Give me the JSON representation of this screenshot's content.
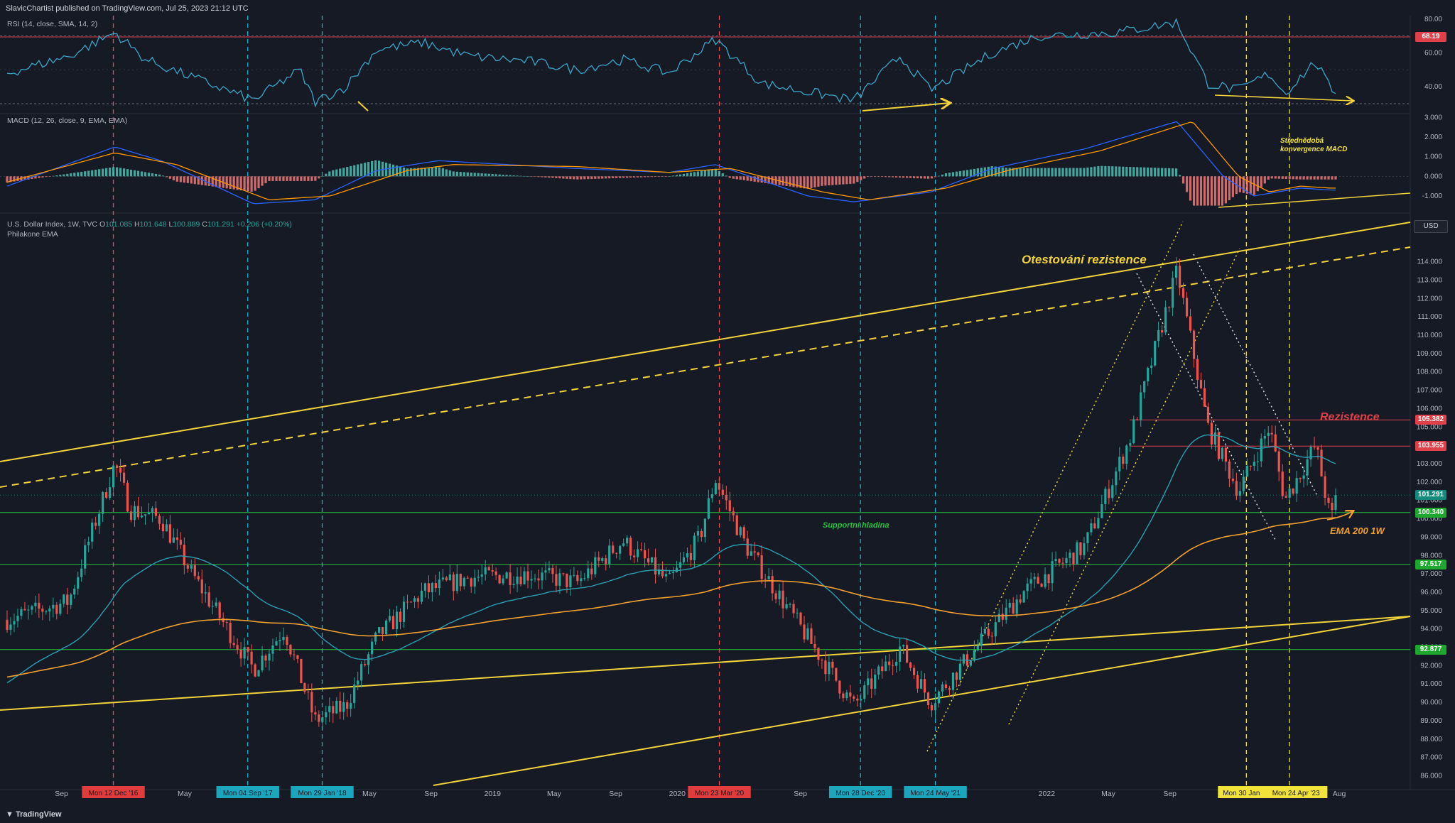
{
  "header": {
    "published": "SlavicChartist published on TradingView.com, Jul 25, 2023 21:12 UTC"
  },
  "footer": {
    "brand": "TradingView"
  },
  "panes": {
    "rsi_label": "RSI (14, close, SMA, 14, 2)",
    "macd_label": "MACD (12, 26, close, 9, EMA, EMA)",
    "main_label": "U.S. Dollar Index, 1W, TVC",
    "ohlc": {
      "o_label": "O",
      "o": "101.085",
      "h_label": "H",
      "h": "101.648",
      "l_label": "L",
      "l": "100.889",
      "c_label": "C",
      "c": "101.291",
      "chg": "+0.206 (+0.20%)"
    },
    "ema_label": "Philakone EMA",
    "currency": "USD"
  },
  "annotations": {
    "resistance_test": "Otestování rezistence",
    "resistance": "Rezistence",
    "support": "Supportní hladina",
    "ema200": "EMA 200 1W",
    "macd_conv_1": "Střednědobá",
    "macd_conv_2": "konvergence MACD"
  },
  "colors": {
    "background": "#161a25",
    "candle_up": "#26a69a",
    "candle_down": "#ef5350",
    "rsi_line": "#3aa6c8",
    "macd_line": "#2962ff",
    "signal_line": "#ff9800",
    "ema_short": "#2a9fb0",
    "ema_200": "#f0a030",
    "channel": "#f2d33b",
    "support": "#27c23a",
    "resistance": "#e0404a",
    "red_marker": "#e84c4c",
    "cyan_marker": "#22b0c8",
    "yellow_marker": "#f2e33b"
  },
  "chart_data": {
    "type": "candlestick",
    "title": "U.S. Dollar Index, 1W, TVC",
    "ylim": [
      85.4,
      115.3
    ],
    "y_ticks": [
      "86.000",
      "87.000",
      "88.000",
      "89.000",
      "90.000",
      "91.000",
      "92.000",
      "93.000",
      "94.000",
      "95.000",
      "96.000",
      "97.000",
      "98.000",
      "99.000",
      "100.000",
      "101.000",
      "102.000",
      "103.000",
      "104.000",
      "105.000",
      "106.000",
      "107.000",
      "108.000",
      "109.000",
      "110.000",
      "111.000",
      "112.000",
      "113.000",
      "114.000"
    ],
    "x_ticks": [
      "Sep",
      "May",
      "May",
      "Sep",
      "2019",
      "May",
      "Sep",
      "2020",
      "Sep",
      "2022",
      "May",
      "Sep",
      "Aug"
    ],
    "price_levels": [
      {
        "value": 105.382,
        "label": "105.382",
        "kind": "resistance"
      },
      {
        "value": 103.955,
        "label": "103.955",
        "kind": "resistance"
      },
      {
        "value": 101.291,
        "label": "101.291",
        "kind": "last"
      },
      {
        "value": 100.34,
        "label": "100.340",
        "kind": "support"
      },
      {
        "value": 97.517,
        "label": "97.517",
        "kind": "support"
      },
      {
        "value": 92.877,
        "label": "92.877",
        "kind": "support"
      }
    ],
    "pivot_markers": [
      {
        "date": "Mon 12 Dec '16",
        "kind": "top"
      },
      {
        "date": "Mon 04 Sep '17",
        "kind": "bottom"
      },
      {
        "date": "Mon 29 Jan '18",
        "kind": "bottom"
      },
      {
        "date": "Mon 23 Mar '20",
        "kind": "top"
      },
      {
        "date": "Mon 28 Dec '20",
        "kind": "bottom"
      },
      {
        "date": "Mon 24 May '21",
        "kind": "bottom"
      },
      {
        "date": "Mon 30 Jan",
        "kind": "divergence"
      },
      {
        "date": "Mon 24 Apr '23",
        "kind": "divergence"
      }
    ],
    "close_path": [
      [
        "2016-05",
        94.5
      ],
      [
        "2016-09",
        95.5
      ],
      [
        "2016-12",
        103.0
      ],
      [
        "2017-01",
        100.5
      ],
      [
        "2017-03",
        100.0
      ],
      [
        "2017-05",
        97.0
      ],
      [
        "2017-09",
        91.8
      ],
      [
        "2017-11",
        94.0
      ],
      [
        "2018-01",
        89.0
      ],
      [
        "2018-03",
        89.8
      ],
      [
        "2018-05",
        93.5
      ],
      [
        "2018-08",
        96.0
      ],
      [
        "2018-11",
        96.8
      ],
      [
        "2019-03",
        97.0
      ],
      [
        "2019-06",
        96.5
      ],
      [
        "2019-09",
        98.8
      ],
      [
        "2019-12",
        96.5
      ],
      [
        "2020-02",
        99.0
      ],
      [
        "2020-03",
        102.2
      ],
      [
        "2020-05",
        98.5
      ],
      [
        "2020-09",
        93.5
      ],
      [
        "2020-12",
        89.8
      ],
      [
        "2021-03",
        93.0
      ],
      [
        "2021-05",
        90.0
      ],
      [
        "2021-08",
        93.0
      ],
      [
        "2021-11",
        96.0
      ],
      [
        "2022-03",
        98.5
      ],
      [
        "2022-06",
        104.5
      ],
      [
        "2022-09",
        113.5
      ],
      [
        "2022-11",
        105.0
      ],
      [
        "2023-01",
        101.5
      ],
      [
        "2023-03",
        105.0
      ],
      [
        "2023-04",
        101.0
      ],
      [
        "2023-06",
        104.0
      ],
      [
        "2023-07",
        99.8
      ],
      [
        "2023-07-24",
        101.291
      ]
    ],
    "rsi": {
      "y_ticks": [
        "80.00",
        "60.00",
        "40.00"
      ],
      "overbought_level": "68.19",
      "path": [
        [
          "2016-05",
          48
        ],
        [
          "2016-09",
          58
        ],
        [
          "2016-12",
          72
        ],
        [
          "2017-02",
          56
        ],
        [
          "2017-09",
          32
        ],
        [
          "2017-12",
          50
        ],
        [
          "2018-01",
          31
        ],
        [
          "2018-03",
          40
        ],
        [
          "2018-05",
          62
        ],
        [
          "2018-08",
          66
        ],
        [
          "2018-11",
          58
        ],
        [
          "2019-03",
          55
        ],
        [
          "2019-06",
          50
        ],
        [
          "2019-09",
          56
        ],
        [
          "2019-12",
          48
        ],
        [
          "2020-03",
          68
        ],
        [
          "2020-06",
          42
        ],
        [
          "2020-12",
          32
        ],
        [
          "2021-03",
          58
        ],
        [
          "2021-05",
          38
        ],
        [
          "2021-09",
          60
        ],
        [
          "2021-12",
          70
        ],
        [
          "2022-05",
          72
        ],
        [
          "2022-09",
          78
        ],
        [
          "2022-11",
          42
        ],
        [
          "2023-01",
          38
        ],
        [
          "2023-03",
          48
        ],
        [
          "2023-04",
          36
        ],
        [
          "2023-06",
          55
        ],
        [
          "2023-07",
          38
        ]
      ]
    },
    "macd": {
      "y_ticks": [
        "3.000",
        "2.000",
        "1.000",
        "0.000",
        "-1.000"
      ],
      "macd_path": [
        [
          "2016-05",
          -0.5
        ],
        [
          "2016-12",
          1.5
        ],
        [
          "2017-03",
          0.8
        ],
        [
          "2017-09",
          -1.4
        ],
        [
          "2018-01",
          -1.2
        ],
        [
          "2018-05",
          0.3
        ],
        [
          "2018-09",
          0.8
        ],
        [
          "2019-06",
          0.4
        ],
        [
          "2019-12",
          0.2
        ],
        [
          "2020-03",
          0.6
        ],
        [
          "2020-09",
          -1.0
        ],
        [
          "2020-12",
          -1.3
        ],
        [
          "2021-05",
          -0.8
        ],
        [
          "2021-09",
          0.4
        ],
        [
          "2022-03",
          1.4
        ],
        [
          "2022-09",
          2.8
        ],
        [
          "2022-12",
          0.0
        ],
        [
          "2023-02",
          -1.0
        ],
        [
          "2023-05",
          -0.6
        ],
        [
          "2023-07",
          -0.7
        ]
      ],
      "signal_path": [
        [
          "2016-05",
          -0.3
        ],
        [
          "2016-12",
          1.2
        ],
        [
          "2017-04",
          0.6
        ],
        [
          "2017-10",
          -1.2
        ],
        [
          "2018-02",
          -1.0
        ],
        [
          "2018-07",
          0.3
        ],
        [
          "2018-10",
          0.6
        ],
        [
          "2019-06",
          0.5
        ],
        [
          "2019-12",
          0.2
        ],
        [
          "2020-04",
          0.4
        ],
        [
          "2020-10",
          -0.8
        ],
        [
          "2021-01",
          -1.2
        ],
        [
          "2021-06",
          -0.6
        ],
        [
          "2021-10",
          0.3
        ],
        [
          "2022-04",
          1.3
        ],
        [
          "2022-10",
          2.8
        ],
        [
          "2023-01",
          0.0
        ],
        [
          "2023-03",
          -0.8
        ],
        [
          "2023-05",
          -0.5
        ],
        [
          "2023-07",
          -0.6
        ]
      ]
    }
  }
}
